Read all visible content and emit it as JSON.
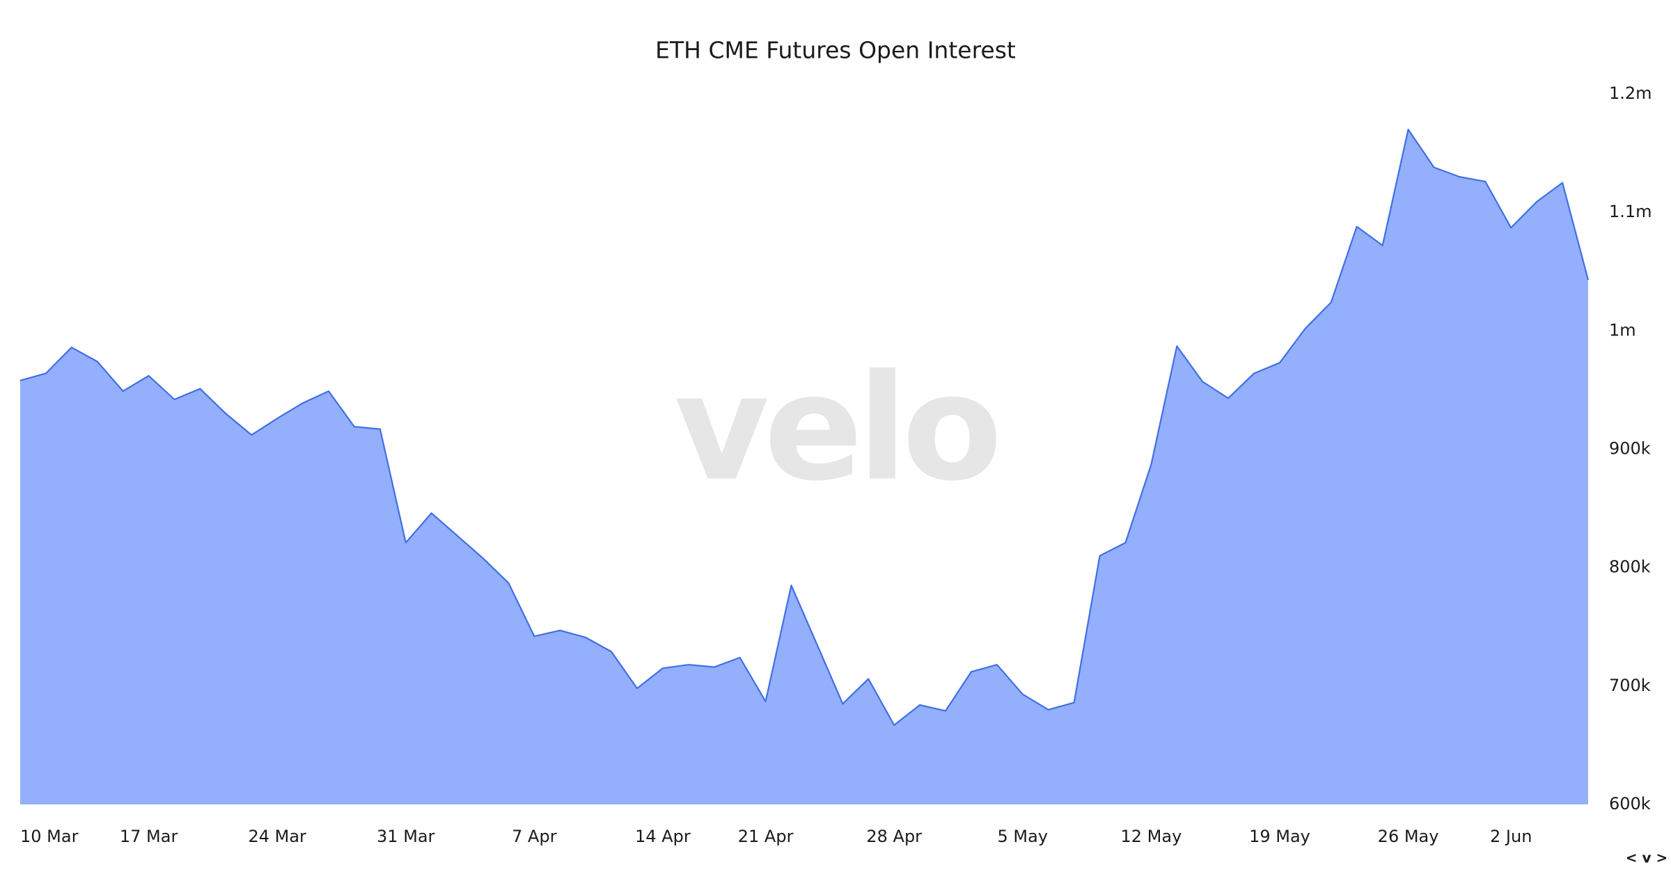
{
  "chart_data": {
    "type": "area",
    "title": "ETH CME Futures Open Interest",
    "watermark": "velo",
    "categories": [
      "10 Mar",
      null,
      null,
      null,
      null,
      "17 Mar",
      null,
      null,
      null,
      null,
      "24 Mar",
      null,
      null,
      null,
      null,
      "31 Mar",
      null,
      null,
      null,
      null,
      "7 Apr",
      null,
      null,
      null,
      null,
      "14 Apr",
      null,
      null,
      null,
      "21 Apr",
      null,
      null,
      null,
      null,
      "28 Apr",
      null,
      null,
      null,
      null,
      "5 May",
      null,
      null,
      null,
      null,
      "12 May",
      null,
      null,
      null,
      null,
      "19 May",
      null,
      null,
      null,
      null,
      "26 May",
      null,
      null,
      null,
      "2 Jun",
      null,
      null,
      null
    ],
    "series": [
      {
        "name": "ETH CME Futures Open Interest",
        "color": "#3f6fe6",
        "fill": "#94affc",
        "values": [
          958000,
          964000,
          986000,
          974000,
          949000,
          962000,
          942000,
          951000,
          930000,
          912000,
          926000,
          939000,
          949000,
          919000,
          917000,
          821000,
          846000,
          827000,
          808000,
          787000,
          742000,
          747000,
          741000,
          729000,
          698000,
          715000,
          718000,
          716000,
          724000,
          687000,
          785000,
          735000,
          685000,
          706000,
          667000,
          684000,
          679000,
          712000,
          718000,
          693000,
          680000,
          686000,
          810000,
          821000,
          887000,
          987000,
          957000,
          943000,
          964000,
          973000,
          1002000,
          1024000,
          1088000,
          1072000,
          1170000,
          1138000,
          1130000,
          1126000,
          1087000,
          1109000,
          1125000,
          1043000
        ]
      }
    ],
    "ylim": [
      600000,
      1200000
    ],
    "yticks": [
      {
        "value": 600000,
        "label": "600k"
      },
      {
        "value": 700000,
        "label": "700k"
      },
      {
        "value": 800000,
        "label": "800k"
      },
      {
        "value": 900000,
        "label": "900k"
      },
      {
        "value": 1000000,
        "label": "1m"
      },
      {
        "value": 1100000,
        "label": "1.1m"
      },
      {
        "value": 1200000,
        "label": "1.2m"
      }
    ],
    "grid": false
  },
  "toolbar": {
    "label": "< v >"
  }
}
